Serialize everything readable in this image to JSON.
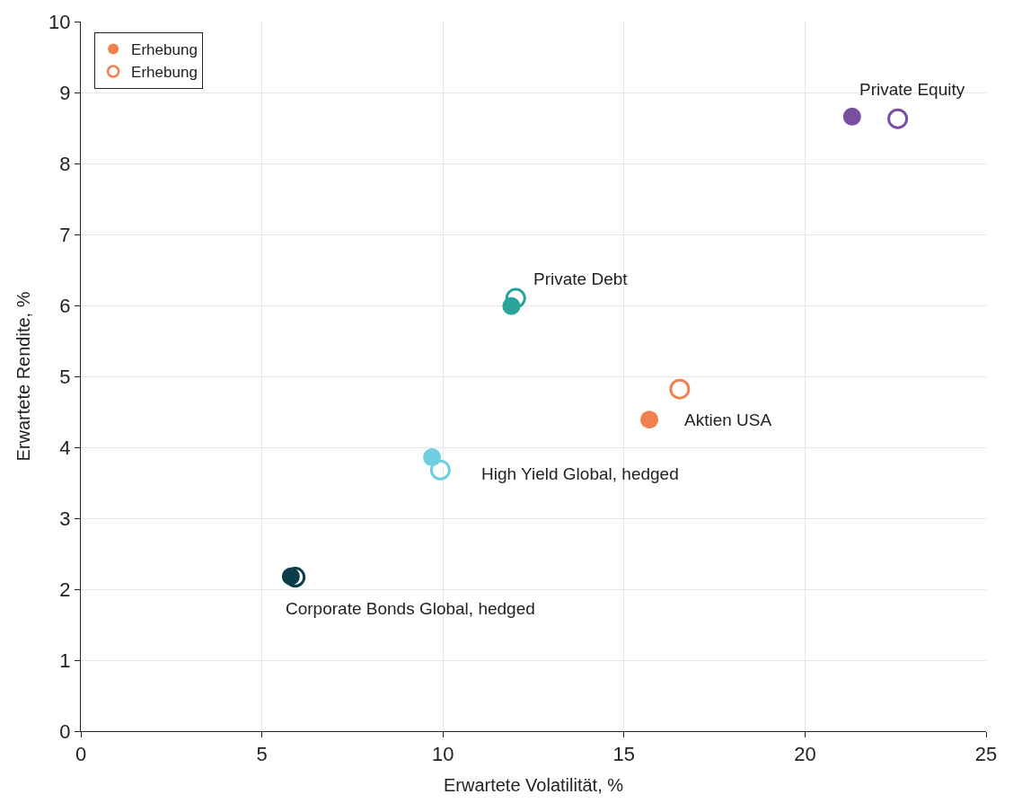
{
  "chart_data": {
    "type": "scatter",
    "xlabel": "Erwartete Volatilität, %",
    "ylabel": "Erwartete Rendite, %",
    "xlim": [
      0,
      25
    ],
    "xticks": [
      0,
      5,
      10,
      15,
      20,
      25
    ],
    "ylim": [
      0,
      10
    ],
    "yticks": [
      0,
      1,
      2,
      3,
      4,
      5,
      6,
      7,
      8,
      9,
      10
    ],
    "grid": true,
    "legend": "top left",
    "series": [
      {
        "name": "Erhebung",
        "marker": "circle",
        "color": "#f08050",
        "x": [
          21.3,
          11.89,
          15.7,
          9.7,
          5.8
        ],
        "values": [
          8.66,
          5.99,
          4.39,
          3.86,
          2.18
        ],
        "colors": [
          "#7b4fa0",
          "#2aa39b",
          "#f08050",
          "#6ecfe0",
          "#0b3d4a"
        ]
      },
      {
        "name": "Erhebung",
        "marker": "circle-open",
        "color": "#f08050",
        "x": [
          22.56,
          12.01,
          16.54,
          9.93,
          5.92
        ],
        "values": [
          8.63,
          6.1,
          4.82,
          3.68,
          2.17
        ],
        "colors": [
          "#7b4fa0",
          "#2aa39b",
          "#f08050",
          "#6ecfe0",
          "#0b3d4a"
        ]
      }
    ],
    "annotations": [
      {
        "text": "Private Equity",
        "x": 22.56,
        "y": 8.63
      },
      {
        "text": "Private Debt",
        "x": 12.01,
        "y": 6.1
      },
      {
        "text": "Aktien USA",
        "x": 15.7,
        "y": 4.39
      },
      {
        "text": "High Yield Global, hedged",
        "x": 9.93,
        "y": 3.68
      },
      {
        "text": "Corporate Bonds Global, hedged",
        "x": 5.8,
        "y": 2.18
      }
    ]
  }
}
